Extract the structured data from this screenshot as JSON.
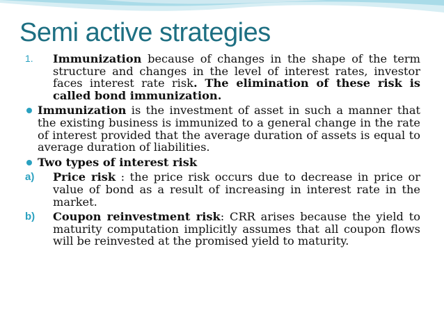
{
  "slide": {
    "title": "Semi active strategies",
    "items": [
      {
        "marker": "1.",
        "term": "Immunization",
        "text1": " because of changes in the shape of the term structure and changes in the level of interest rates, investor faces interest rate risk",
        "bold_tail": ". The elimination of these risk is called bond immunization."
      },
      {
        "term": "Immunization",
        "text": " is the investment of asset in such a manner that the existing business is immunized to a general change in the rate of interest provided that the average duration of assets is equal to average duration of liabilities."
      },
      {
        "term": "Two types of interest risk"
      },
      {
        "marker": "a)",
        "term": "Price risk",
        "text": " : the price risk occurs due to decrease in price or value of bond as a result of increasing in interest rate in the market."
      },
      {
        "marker": "b)",
        "term": "Coupon reinvestment risk",
        "text": ": CRR arises because the yield to maturity computation implicitly assumes that all coupon flows will be reinvested at the promised yield to maturity."
      }
    ]
  }
}
